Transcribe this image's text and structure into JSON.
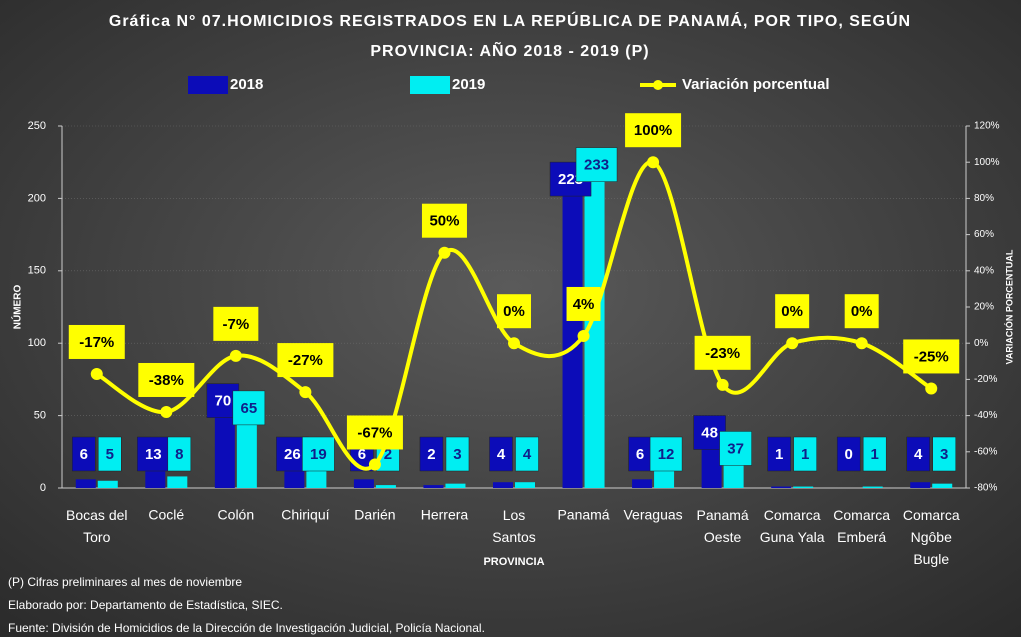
{
  "chart_data": {
    "type": "bar_line",
    "title": [
      "Gráfica N° 07.HOMICIDIOS  REGISTRADOS EN LA REPÚBLICA DE PANAMÁ, POR TIPO, SEGÚN",
      "PROVINCIA:  AÑO 2018 - 2019 (P)"
    ],
    "x_label": "PROVINCIA",
    "y_label": "NÚMERO",
    "y2_label": "VARIACIÓN PORCENTUAL",
    "categories": [
      "Bocas del Toro",
      "Coclé",
      "Colón",
      "Chiriquí",
      "Darién",
      "Herrera",
      "Los Santos",
      "Panamá",
      "Veraguas",
      "Panamá Oeste",
      "Comarca Guna Yala",
      "Comarca Emberá",
      "Comarca Ngôbe Bugle"
    ],
    "series": [
      {
        "name": "2018",
        "color": "#0c0cb8",
        "values": [
          6,
          13,
          70,
          26,
          6,
          2,
          4,
          223,
          6,
          48,
          1,
          0,
          4
        ]
      },
      {
        "name": "2019",
        "color": "#00eef2",
        "values": [
          5,
          8,
          65,
          19,
          2,
          3,
          4,
          233,
          12,
          37,
          1,
          1,
          3
        ]
      },
      {
        "name": "Variación porcentual",
        "color": "#ffff00",
        "axis": "y2",
        "values": [
          -17,
          -38,
          -7,
          -27,
          -67,
          50,
          0,
          4,
          100,
          -23,
          0,
          0,
          -25
        ],
        "value_labels": [
          "-17%",
          "-38%",
          "-7%",
          "-27%",
          "-67%",
          "50%",
          "0%",
          "4%",
          "100%",
          "-23%",
          "0%",
          "0%",
          "-25%"
        ]
      }
    ],
    "ylim": [
      0,
      250
    ],
    "yticks": [
      0,
      50,
      100,
      150,
      200,
      250
    ],
    "y2lim": [
      -80,
      120
    ],
    "y2ticks": [
      {
        "value": -80,
        "label": "-80%"
      },
      {
        "value": -60,
        "label": "-60%"
      },
      {
        "value": -40,
        "label": "-40%"
      },
      {
        "value": -20,
        "label": "-20%"
      },
      {
        "value": 0,
        "label": "0%"
      },
      {
        "value": 20,
        "label": "20%"
      },
      {
        "value": 40,
        "label": "40%"
      },
      {
        "value": 60,
        "label": "60%"
      },
      {
        "value": 80,
        "label": "80%"
      },
      {
        "value": 100,
        "label": "100%"
      },
      {
        "value": 120,
        "label": "120%"
      }
    ],
    "grid": true,
    "notes": [
      "(P) Cifras preliminares   al mes de  noviembre",
      "Elaborado  por: Departamento  de Estadística, SIEC.",
      "Fuente:   División de Homicidios de la Dirección de Investigación  Judicial, Policía Nacional."
    ]
  }
}
